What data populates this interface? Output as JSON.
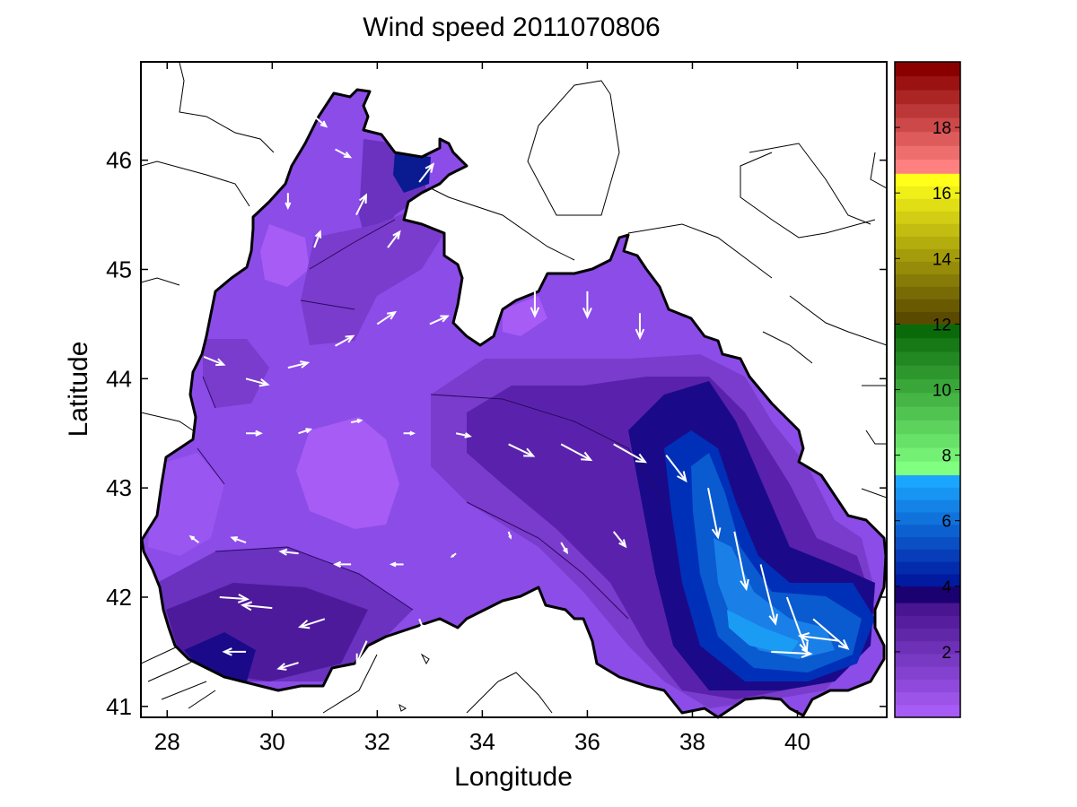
{
  "chart_data": {
    "type": "heatmap",
    "title": "Wind speed 2011070806",
    "xlabel": "Longitude",
    "ylabel": "Latitude",
    "xlim": [
      27.5,
      41.7
    ],
    "ylim": [
      40.9,
      46.9
    ],
    "xticks": [
      28,
      30,
      32,
      34,
      36,
      38,
      40
    ],
    "yticks": [
      41,
      42,
      43,
      44,
      45,
      46
    ],
    "grid": false,
    "colorbar": {
      "range": [
        0,
        20
      ],
      "ticks": [
        2,
        4,
        6,
        8,
        10,
        12,
        14,
        16,
        18
      ],
      "bands": [
        {
          "from": 0,
          "to": 3.5,
          "color_low": "#a65cf5",
          "color_high": "#4a1590"
        },
        {
          "from": 3.5,
          "to": 4,
          "color_low": "#1a0070",
          "color_high": "#1a0070"
        },
        {
          "from": 4,
          "to": 7.4,
          "color_low": "#001aa0",
          "color_high": "#1aa6ff"
        },
        {
          "from": 7.4,
          "to": 12,
          "color_low": "#80ff80",
          "color_high": "#0a6a0a"
        },
        {
          "from": 12,
          "to": 16.6,
          "color_low": "#5a4a00",
          "color_high": "#ffff1a"
        },
        {
          "from": 16.6,
          "to": 20,
          "color_low": "#ff8080",
          "color_high": "#8a0000"
        }
      ]
    },
    "field": {
      "description_kind": "filled contours of wind speed over the Black Sea with wind vectors",
      "speed_levels": [
        {
          "lon": 30.0,
          "lat": 43.5,
          "speed": 1.2
        },
        {
          "lon": 31.5,
          "lat": 43.0,
          "speed": 0.5
        },
        {
          "lon": 28.5,
          "lat": 42.9,
          "speed": 0.8
        },
        {
          "lon": 29.0,
          "lat": 44.8,
          "speed": 0.6
        },
        {
          "lon": 35.0,
          "lat": 44.3,
          "speed": 1.0
        },
        {
          "lon": 32.2,
          "lat": 45.8,
          "speed": 2.4
        },
        {
          "lon": 29.8,
          "lat": 41.8,
          "speed": 2.8
        },
        {
          "lon": 29.0,
          "lat": 41.5,
          "speed": 3.8
        },
        {
          "lon": 35.0,
          "lat": 43.5,
          "speed": 2.8
        },
        {
          "lon": 37.5,
          "lat": 43.0,
          "speed": 4.2
        },
        {
          "lon": 38.8,
          "lat": 42.0,
          "speed": 5.8
        },
        {
          "lon": 39.8,
          "lat": 41.6,
          "speed": 6.8
        },
        {
          "lon": 40.8,
          "lat": 41.8,
          "speed": 5.0
        },
        {
          "lon": 39.5,
          "lat": 43.0,
          "speed": 1.5
        }
      ],
      "wind_vectors": [
        {
          "lon": 28.7,
          "lat": 44.2,
          "u": 2.0,
          "v": -0.8
        },
        {
          "lon": 29.5,
          "lat": 44.0,
          "u": 2.2,
          "v": -0.6
        },
        {
          "lon": 30.3,
          "lat": 44.1,
          "u": 2.0,
          "v": 0.5
        },
        {
          "lon": 31.2,
          "lat": 44.3,
          "u": 1.8,
          "v": 1.0
        },
        {
          "lon": 32.0,
          "lat": 44.5,
          "u": 1.8,
          "v": 1.2
        },
        {
          "lon": 33.0,
          "lat": 44.5,
          "u": 1.8,
          "v": 0.8
        },
        {
          "lon": 29.5,
          "lat": 43.5,
          "u": 1.5,
          "v": 0.0
        },
        {
          "lon": 30.5,
          "lat": 43.5,
          "u": 1.2,
          "v": 0.4
        },
        {
          "lon": 31.5,
          "lat": 43.6,
          "u": 1.0,
          "v": 0.2
        },
        {
          "lon": 32.5,
          "lat": 43.5,
          "u": 1.0,
          "v": 0.0
        },
        {
          "lon": 33.5,
          "lat": 43.5,
          "u": 1.4,
          "v": -0.3
        },
        {
          "lon": 34.5,
          "lat": 43.4,
          "u": 2.5,
          "v": -1.2
        },
        {
          "lon": 35.5,
          "lat": 43.4,
          "u": 3.0,
          "v": -1.6
        },
        {
          "lon": 36.5,
          "lat": 43.4,
          "u": 3.2,
          "v": -1.8
        },
        {
          "lon": 37.5,
          "lat": 43.3,
          "u": 2.0,
          "v": -2.6
        },
        {
          "lon": 38.3,
          "lat": 43.0,
          "u": 1.0,
          "v": -5.0
        },
        {
          "lon": 38.8,
          "lat": 42.6,
          "u": 1.2,
          "v": -5.8
        },
        {
          "lon": 39.3,
          "lat": 42.3,
          "u": 1.5,
          "v": -6.0
        },
        {
          "lon": 39.8,
          "lat": 42.0,
          "u": 2.0,
          "v": -5.5
        },
        {
          "lon": 40.3,
          "lat": 41.8,
          "u": 3.5,
          "v": -3.0
        },
        {
          "lon": 40.8,
          "lat": 41.6,
          "u": -4.0,
          "v": 0.5
        },
        {
          "lon": 39.5,
          "lat": 41.5,
          "u": 4.0,
          "v": -0.2
        },
        {
          "lon": 35.0,
          "lat": 44.8,
          "u": 0.0,
          "v": -2.5
        },
        {
          "lon": 36.0,
          "lat": 44.8,
          "u": 0.0,
          "v": -2.6
        },
        {
          "lon": 37.0,
          "lat": 44.6,
          "u": 0.0,
          "v": -2.5
        },
        {
          "lon": 36.5,
          "lat": 42.6,
          "u": 1.2,
          "v": -1.5
        },
        {
          "lon": 35.5,
          "lat": 42.5,
          "u": 0.6,
          "v": -1.0
        },
        {
          "lon": 34.5,
          "lat": 42.6,
          "u": 0.2,
          "v": -0.6
        },
        {
          "lon": 33.5,
          "lat": 42.4,
          "u": -0.4,
          "v": -0.3
        },
        {
          "lon": 32.5,
          "lat": 42.3,
          "u": -1.2,
          "v": 0.0
        },
        {
          "lon": 31.5,
          "lat": 42.3,
          "u": -1.6,
          "v": 0.0
        },
        {
          "lon": 30.5,
          "lat": 42.4,
          "u": -1.8,
          "v": 0.2
        },
        {
          "lon": 29.5,
          "lat": 42.5,
          "u": -1.4,
          "v": 0.5
        },
        {
          "lon": 28.6,
          "lat": 42.5,
          "u": -0.8,
          "v": 0.6
        },
        {
          "lon": 29.0,
          "lat": 42.0,
          "u": 2.8,
          "v": -0.2
        },
        {
          "lon": 30.0,
          "lat": 41.9,
          "u": -3.0,
          "v": 0.3
        },
        {
          "lon": 31.0,
          "lat": 41.8,
          "u": -2.5,
          "v": -0.8
        },
        {
          "lon": 31.8,
          "lat": 41.6,
          "u": -1.0,
          "v": -2.2
        },
        {
          "lon": 32.8,
          "lat": 41.8,
          "u": 0.4,
          "v": -1.0
        },
        {
          "lon": 29.5,
          "lat": 41.5,
          "u": -2.2,
          "v": 0.0
        },
        {
          "lon": 30.5,
          "lat": 41.4,
          "u": -2.0,
          "v": -0.6
        },
        {
          "lon": 31.6,
          "lat": 45.5,
          "u": 1.0,
          "v": 2.0
        },
        {
          "lon": 32.2,
          "lat": 45.2,
          "u": 1.2,
          "v": 1.6
        },
        {
          "lon": 32.8,
          "lat": 45.8,
          "u": 1.4,
          "v": 1.8
        },
        {
          "lon": 31.2,
          "lat": 46.1,
          "u": 1.5,
          "v": -0.8
        },
        {
          "lon": 30.8,
          "lat": 46.4,
          "u": 1.2,
          "v": -1.0
        },
        {
          "lon": 30.3,
          "lat": 45.7,
          "u": 0.0,
          "v": -1.5
        },
        {
          "lon": 30.8,
          "lat": 45.2,
          "u": 0.6,
          "v": 1.6
        }
      ]
    }
  }
}
